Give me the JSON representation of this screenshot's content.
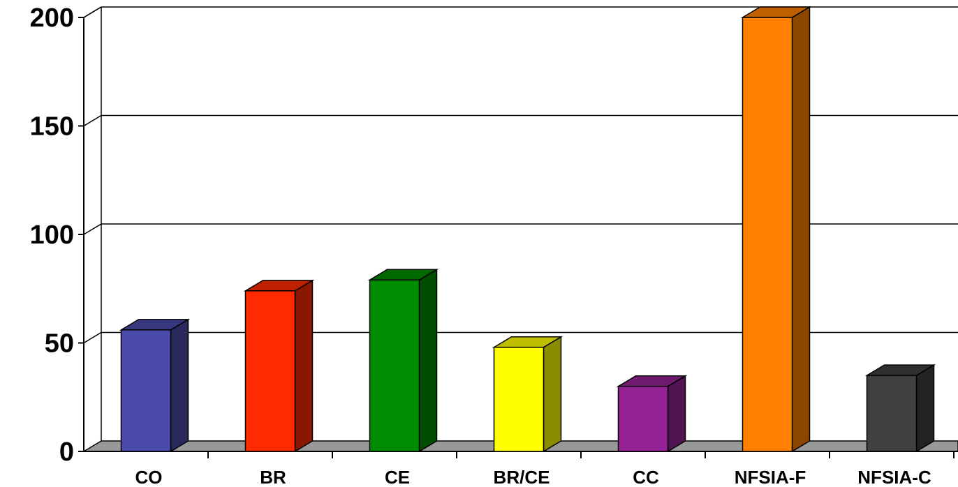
{
  "chart_data": {
    "type": "bar",
    "style": "3d-column",
    "categories": [
      "CO",
      "BR",
      "CE",
      "BR/CE",
      "CC",
      "NFSIA-F",
      "NFSIA-C"
    ],
    "values": [
      56,
      74,
      79,
      48,
      30,
      200,
      35
    ],
    "colors": [
      "#4A4AAA",
      "#FF2A00",
      "#008C00",
      "#FFFF00",
      "#942294",
      "#FF7F00",
      "#404040"
    ],
    "yticks": [
      "0",
      "50",
      "100",
      "150",
      "200"
    ],
    "ylim": [
      0,
      200
    ],
    "title": "",
    "xlabel": "",
    "ylabel": "",
    "grid": true,
    "legend": "none"
  }
}
